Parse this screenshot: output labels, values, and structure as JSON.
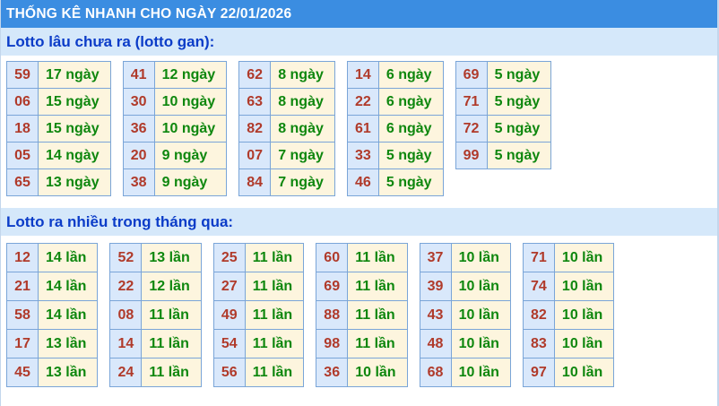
{
  "title_bar": {
    "text": "THỐNG KÊ NHANH CHO NGÀY 22/01/2026"
  },
  "colors": {
    "title_bar_bg": "#3b8de1",
    "title_text": "#ffffff",
    "section_heading_bg": "#d5e8fa",
    "section_heading_text": "#0b3cc8",
    "table_border": "#7aa5d8",
    "cell_number_bg": "#d9e8fb",
    "cell_number_text": "#b03a2a",
    "cell_value_bg": "#fdf5de",
    "cell_value_text": "#0e870e",
    "page_border": "#c3d6ec"
  },
  "sections": [
    {
      "id": "lotto-gan",
      "heading": "Lotto lâu chưa ra (lotto gan):",
      "unit": "ngày",
      "columns": [
        [
          {
            "n": "59",
            "v": "17 ngày"
          },
          {
            "n": "06",
            "v": "15 ngày"
          },
          {
            "n": "18",
            "v": "15 ngày"
          },
          {
            "n": "05",
            "v": "14 ngày"
          },
          {
            "n": "65",
            "v": "13 ngày"
          }
        ],
        [
          {
            "n": "41",
            "v": "12 ngày"
          },
          {
            "n": "30",
            "v": "10 ngày"
          },
          {
            "n": "36",
            "v": "10 ngày"
          },
          {
            "n": "20",
            "v": "9 ngày"
          },
          {
            "n": "38",
            "v": "9 ngày"
          }
        ],
        [
          {
            "n": "62",
            "v": "8 ngày"
          },
          {
            "n": "63",
            "v": "8 ngày"
          },
          {
            "n": "82",
            "v": "8 ngày"
          },
          {
            "n": "07",
            "v": "7 ngày"
          },
          {
            "n": "84",
            "v": "7 ngày"
          }
        ],
        [
          {
            "n": "14",
            "v": "6 ngày"
          },
          {
            "n": "22",
            "v": "6 ngày"
          },
          {
            "n": "61",
            "v": "6 ngày"
          },
          {
            "n": "33",
            "v": "5 ngày"
          },
          {
            "n": "46",
            "v": "5 ngày"
          }
        ],
        [
          {
            "n": "69",
            "v": "5 ngày"
          },
          {
            "n": "71",
            "v": "5 ngày"
          },
          {
            "n": "72",
            "v": "5 ngày"
          },
          {
            "n": "99",
            "v": "5 ngày"
          }
        ]
      ]
    },
    {
      "id": "lotto-hot",
      "heading": "Lotto ra nhiều trong tháng qua:",
      "unit": "lần",
      "columns": [
        [
          {
            "n": "12",
            "v": "14 lần"
          },
          {
            "n": "21",
            "v": "14 lần"
          },
          {
            "n": "58",
            "v": "14 lần"
          },
          {
            "n": "17",
            "v": "13 lần"
          },
          {
            "n": "45",
            "v": "13 lần"
          }
        ],
        [
          {
            "n": "52",
            "v": "13 lần"
          },
          {
            "n": "22",
            "v": "12 lần"
          },
          {
            "n": "08",
            "v": "11 lần"
          },
          {
            "n": "14",
            "v": "11 lần"
          },
          {
            "n": "24",
            "v": "11 lần"
          }
        ],
        [
          {
            "n": "25",
            "v": "11 lần"
          },
          {
            "n": "27",
            "v": "11 lần"
          },
          {
            "n": "49",
            "v": "11 lần"
          },
          {
            "n": "54",
            "v": "11 lần"
          },
          {
            "n": "56",
            "v": "11 lần"
          }
        ],
        [
          {
            "n": "60",
            "v": "11 lần"
          },
          {
            "n": "69",
            "v": "11 lần"
          },
          {
            "n": "88",
            "v": "11 lần"
          },
          {
            "n": "98",
            "v": "11 lần"
          },
          {
            "n": "36",
            "v": "10 lần"
          }
        ],
        [
          {
            "n": "37",
            "v": "10 lần"
          },
          {
            "n": "39",
            "v": "10 lần"
          },
          {
            "n": "43",
            "v": "10 lần"
          },
          {
            "n": "48",
            "v": "10 lần"
          },
          {
            "n": "68",
            "v": "10 lần"
          }
        ],
        [
          {
            "n": "71",
            "v": "10 lần"
          },
          {
            "n": "74",
            "v": "10 lần"
          },
          {
            "n": "82",
            "v": "10 lần"
          },
          {
            "n": "83",
            "v": "10 lần"
          },
          {
            "n": "97",
            "v": "10 lần"
          }
        ]
      ]
    }
  ]
}
